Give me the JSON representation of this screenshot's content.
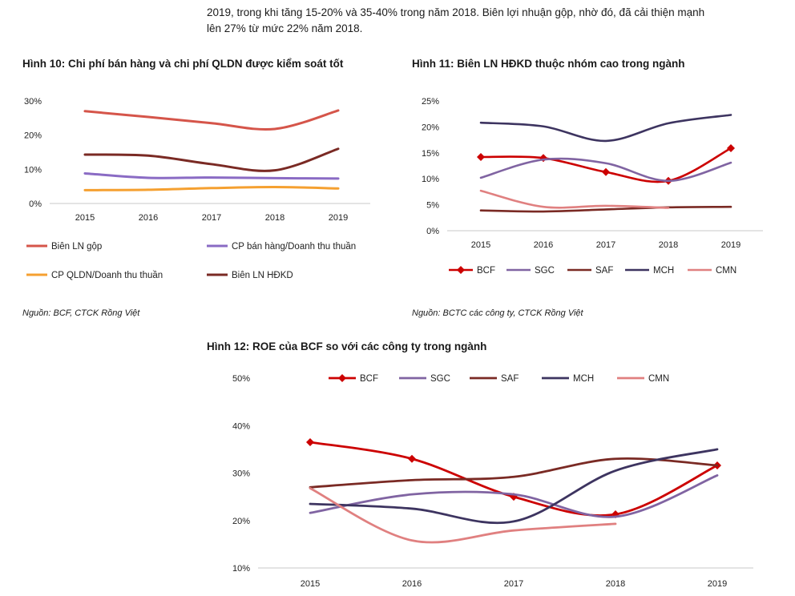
{
  "intro": {
    "line1": "2019, trong khi tăng 15-20% và 35-40% trong năm 2018. Biên lợi nhuận gộp, nhờ đó, đã cải thiện mạnh",
    "line2": "lên 27% từ mức 22% năm 2018."
  },
  "colors": {
    "BCF": "#cc0000",
    "SGC": "#8064a2",
    "SAF": "#7a2a24",
    "MCH": "#3d3460",
    "CMN": "#e08080",
    "bien_ln_gop": "#d5554a",
    "cp_ban_hang": "#8a6bc4",
    "cp_qldn": "#f5a030",
    "bien_ln_hdkd": "#7a2a24"
  },
  "chart_data": [
    {
      "type": "line",
      "title": "Hình 10: Chi phí bán hàng và chi phí QLDN được kiểm soát tốt",
      "source": "Nguồn: BCF, CTCK Rồng Việt",
      "categories": [
        "2015",
        "2016",
        "2017",
        "2018",
        "2019"
      ],
      "ylim": [
        0,
        30
      ],
      "yticks": [
        "0%",
        "10%",
        "20%",
        "30%"
      ],
      "grid": false,
      "legend": "bottom",
      "series": [
        {
          "name": "Biên LN gộp",
          "color_key": "bien_ln_gop",
          "values": [
            27,
            25.3,
            23.5,
            21.8,
            27.2
          ]
        },
        {
          "name": "CP bán hàng/Doanh thu thuần",
          "color_key": "cp_ban_hang",
          "values": [
            8.8,
            7.5,
            7.6,
            7.4,
            7.3
          ]
        },
        {
          "name": "CP QLDN/Doanh thu thuần",
          "color_key": "cp_qldn",
          "values": [
            3.9,
            4.0,
            4.5,
            4.8,
            4.4
          ]
        },
        {
          "name": "Biên LN HĐKD",
          "color_key": "bien_ln_hdkd",
          "values": [
            14.3,
            14.0,
            11.5,
            9.7,
            16.0
          ]
        }
      ]
    },
    {
      "type": "line",
      "title": "Hình 11: Biên LN HĐKD thuộc nhóm cao trong ngành",
      "source": "Nguồn: BCTC các công ty, CTCK Rồng Việt",
      "categories": [
        "2015",
        "2016",
        "2017",
        "2018",
        "2019"
      ],
      "ylim": [
        0,
        25
      ],
      "yticks": [
        "0%",
        "5%",
        "10%",
        "15%",
        "20%",
        "25%"
      ],
      "grid": false,
      "legend": "bottom",
      "series": [
        {
          "name": "BCF",
          "color_key": "BCF",
          "marker": true,
          "values": [
            14.2,
            14.0,
            11.3,
            9.6,
            15.9
          ]
        },
        {
          "name": "SGC",
          "color_key": "SGC",
          "values": [
            10.2,
            13.7,
            13.0,
            9.6,
            13.1
          ]
        },
        {
          "name": "SAF",
          "color_key": "SAF",
          "values": [
            3.9,
            3.7,
            4.1,
            4.5,
            4.6
          ]
        },
        {
          "name": "MCH",
          "color_key": "MCH",
          "values": [
            20.8,
            20.1,
            17.3,
            20.7,
            22.3
          ]
        },
        {
          "name": "CMN",
          "color_key": "CMN",
          "values": [
            7.7,
            4.6,
            4.8,
            4.4,
            null
          ]
        }
      ]
    },
    {
      "type": "line",
      "title": "Hình 12: ROE của BCF so với các công ty trong ngành",
      "categories": [
        "2015",
        "2016",
        "2017",
        "2018",
        "2019"
      ],
      "ylim": [
        10,
        50
      ],
      "yticks": [
        "10%",
        "20%",
        "30%",
        "40%",
        "50%"
      ],
      "grid": false,
      "legend": "top",
      "series": [
        {
          "name": "BCF",
          "color_key": "BCF",
          "marker": true,
          "values": [
            36.5,
            33.0,
            25.0,
            21.3,
            31.6
          ]
        },
        {
          "name": "SGC",
          "color_key": "SGC",
          "values": [
            21.6,
            25.5,
            25.5,
            20.8,
            29.5
          ]
        },
        {
          "name": "SAF",
          "color_key": "SAF",
          "values": [
            27.0,
            28.5,
            29.2,
            33.0,
            31.6
          ]
        },
        {
          "name": "MCH",
          "color_key": "MCH",
          "values": [
            23.5,
            22.5,
            19.8,
            30.5,
            35.0
          ]
        },
        {
          "name": "CMN",
          "color_key": "CMN",
          "values": [
            26.8,
            15.8,
            17.9,
            19.3,
            null
          ]
        }
      ]
    }
  ]
}
